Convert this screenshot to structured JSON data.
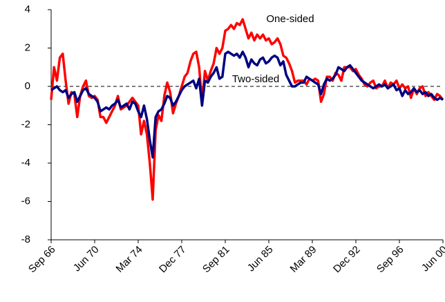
{
  "chart_data": {
    "type": "line",
    "categories": [
      "Sep 66",
      null,
      null,
      null,
      null,
      null,
      null,
      null,
      null,
      null,
      null,
      null,
      null,
      null,
      null,
      "Jun 70",
      null,
      null,
      null,
      null,
      null,
      null,
      null,
      null,
      null,
      null,
      null,
      null,
      null,
      null,
      "Mar 74",
      null,
      null,
      null,
      null,
      null,
      null,
      null,
      null,
      null,
      null,
      null,
      null,
      null,
      null,
      "Dec 77",
      null,
      null,
      null,
      null,
      null,
      null,
      null,
      null,
      null,
      null,
      null,
      null,
      null,
      null,
      "Sep 81",
      null,
      null,
      null,
      null,
      null,
      null,
      null,
      null,
      null,
      null,
      null,
      null,
      null,
      null,
      "Jun 85",
      null,
      null,
      null,
      null,
      null,
      null,
      null,
      null,
      null,
      null,
      null,
      null,
      null,
      null,
      "Mar 89",
      null,
      null,
      null,
      null,
      null,
      null,
      null,
      null,
      null,
      null,
      null,
      null,
      null,
      null,
      "Dec 92",
      null,
      null,
      null,
      null,
      null,
      null,
      null,
      null,
      null,
      null,
      null,
      null,
      null,
      null,
      "Sep 96",
      null,
      null,
      null,
      null,
      null,
      null,
      null,
      null,
      null,
      null,
      null,
      null,
      null,
      null,
      "Jun 00"
    ],
    "series": [
      {
        "name": "One-sided",
        "color": "#ff0000",
        "values": [
          -0.7,
          1.0,
          0.3,
          1.5,
          1.7,
          0.3,
          -0.9,
          -0.3,
          -0.4,
          -1.6,
          -0.5,
          0,
          0.3,
          -0.5,
          -0.6,
          -0.5,
          -0.7,
          -1.6,
          -1.6,
          -1.9,
          -1.6,
          -1.3,
          -1.0,
          -0.5,
          -1.2,
          -1.1,
          -1.0,
          -0.8,
          -0.6,
          -0.8,
          -1.0,
          -2.5,
          -1.8,
          -2.5,
          -4.0,
          -5.9,
          -2.3,
          -1.5,
          -1.8,
          -0.5,
          0.2,
          -0.3,
          -1.4,
          -0.9,
          -0.5,
          0.0,
          0.5,
          0.7,
          1.3,
          1.7,
          1.8,
          1.0,
          -0.8,
          0.8,
          0.3,
          0.8,
          1.2,
          2.0,
          1.7,
          2.0,
          2.9,
          3.0,
          3.2,
          3.0,
          3.3,
          3.2,
          3.5,
          3.0,
          2.5,
          2.8,
          2.4,
          2.7,
          2.5,
          2.7,
          2.4,
          2.5,
          2.2,
          2.3,
          2.5,
          2.2,
          1.6,
          1.5,
          1.2,
          0.8,
          0.2,
          0.3,
          0.3,
          0.3,
          0.1,
          0.4,
          0.3,
          0.4,
          0.3,
          -0.8,
          -0.4,
          0.5,
          0.5,
          0.3,
          0.7,
          0.6,
          0.3,
          1.0,
          1.0,
          1.0,
          0.8,
          0.9,
          0.6,
          0.4,
          0.1,
          0.0,
          0.2,
          0.3,
          -0.1,
          0.0,
          0.0,
          0.3,
          -0.1,
          0.2,
          0.1,
          0.3,
          -0.1,
          0.1,
          -0.1,
          0.0,
          -0.6,
          -0.1,
          -0.4,
          -0.1,
          0.0,
          -0.5,
          -0.3,
          -0.5,
          -0.7,
          -0.4,
          -0.5,
          -0.7
        ]
      },
      {
        "name": "Two-sided",
        "color": "#000080",
        "values": [
          -0.2,
          -0.1,
          0.0,
          -0.2,
          -0.3,
          -0.2,
          -0.6,
          -0.4,
          -0.3,
          -0.8,
          -0.5,
          -0.2,
          -0.1,
          -0.4,
          -0.5,
          -0.6,
          -0.8,
          -1.3,
          -1.2,
          -1.1,
          -1.2,
          -1.0,
          -0.9,
          -0.7,
          -1.1,
          -1.0,
          -0.9,
          -1.2,
          -0.8,
          -0.9,
          -1.3,
          -1.6,
          -1.0,
          -1.7,
          -2.8,
          -3.7,
          -1.6,
          -1.3,
          -1.2,
          -0.9,
          -0.5,
          -0.6,
          -1.0,
          -0.8,
          -0.5,
          -0.2,
          0.0,
          0.1,
          0.2,
          0.3,
          -0.1,
          0.4,
          -1.0,
          0.3,
          0.2,
          0.5,
          0.7,
          1.0,
          0.4,
          0.5,
          1.7,
          1.8,
          1.7,
          1.6,
          1.7,
          1.5,
          1.8,
          1.5,
          1.0,
          1.4,
          1.2,
          1.1,
          1.4,
          1.5,
          1.2,
          1.3,
          1.5,
          1.6,
          1.5,
          1.1,
          1.3,
          0.6,
          0.3,
          0.0,
          0.0,
          0.1,
          0.2,
          0.2,
          0.5,
          0.4,
          0.3,
          0.2,
          0.1,
          -0.4,
          0.1,
          0.4,
          0.3,
          0.4,
          0.6,
          1.0,
          0.9,
          0.8,
          1.0,
          1.1,
          0.9,
          0.7,
          0.5,
          0.3,
          0.2,
          0.1,
          0.0,
          -0.1,
          0.0,
          0.1,
          0.0,
          0.1,
          -0.1,
          0.0,
          0.1,
          -0.2,
          -0.1,
          -0.5,
          -0.2,
          -0.4,
          -0.3,
          -0.1,
          -0.3,
          -0.2,
          -0.4,
          -0.3,
          -0.5,
          -0.4,
          -0.6,
          -0.7,
          -0.6,
          -0.7
        ]
      }
    ],
    "ylim": [
      -8,
      4
    ],
    "yticks": [
      -8,
      -6,
      -4,
      -2,
      0,
      2,
      4
    ],
    "hline": 0
  }
}
